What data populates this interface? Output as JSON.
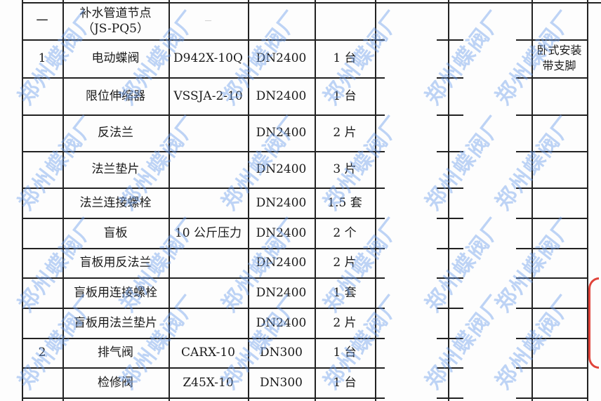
{
  "watermark": "郑州蝶阀厂",
  "stamp_color": "#e0433a",
  "watermark_color": "#6ea0eb",
  "section": {
    "index": "一",
    "title_line1": "补水管道节点",
    "title_line2": "（JS-PQ5）",
    "model": "—"
  },
  "rows": [
    {
      "no": "1",
      "name": "电动蝶阀",
      "model": "D942X-10Q",
      "size": "DN2400",
      "qty": "1 台",
      "remark": "卧式安装\n带支脚"
    },
    {
      "no": "",
      "name": "限位伸缩器",
      "model": "VSSJA-2-10",
      "size": "DN2400",
      "qty": "1 台",
      "remark": ""
    },
    {
      "no": "",
      "name": "反法兰",
      "model": "",
      "size": "DN2400",
      "qty": "2 片",
      "remark": ""
    },
    {
      "no": "",
      "name": "法兰垫片",
      "model": "",
      "size": "DN2400",
      "qty": "3 片",
      "remark": ""
    },
    {
      "no": "",
      "name": "法兰连接螺栓",
      "model": "",
      "size": "DN2400",
      "qty": "1.5 套",
      "remark": ""
    },
    {
      "no": "",
      "name": "盲板",
      "model": "10 公斤压力",
      "size": "DN2400",
      "qty": "2 个",
      "remark": ""
    },
    {
      "no": "",
      "name": "盲板用反法兰",
      "model": "",
      "size": "DN2400",
      "qty": "2 片",
      "remark": ""
    },
    {
      "no": "",
      "name": "盲板用连接螺栓",
      "model": "",
      "size": "DN2400",
      "qty": "1 套",
      "remark": ""
    },
    {
      "no": "",
      "name": "盲板用法兰垫片",
      "model": "",
      "size": "DN2400",
      "qty": "2 片",
      "remark": ""
    },
    {
      "no": "2",
      "name": "排气阀",
      "model": "CARX-10",
      "size": "DN300",
      "qty": "1 台",
      "remark": ""
    },
    {
      "no": "",
      "name": "检修阀",
      "model": "Z45X-10",
      "size": "DN300",
      "qty": "1 台",
      "remark": ""
    }
  ]
}
